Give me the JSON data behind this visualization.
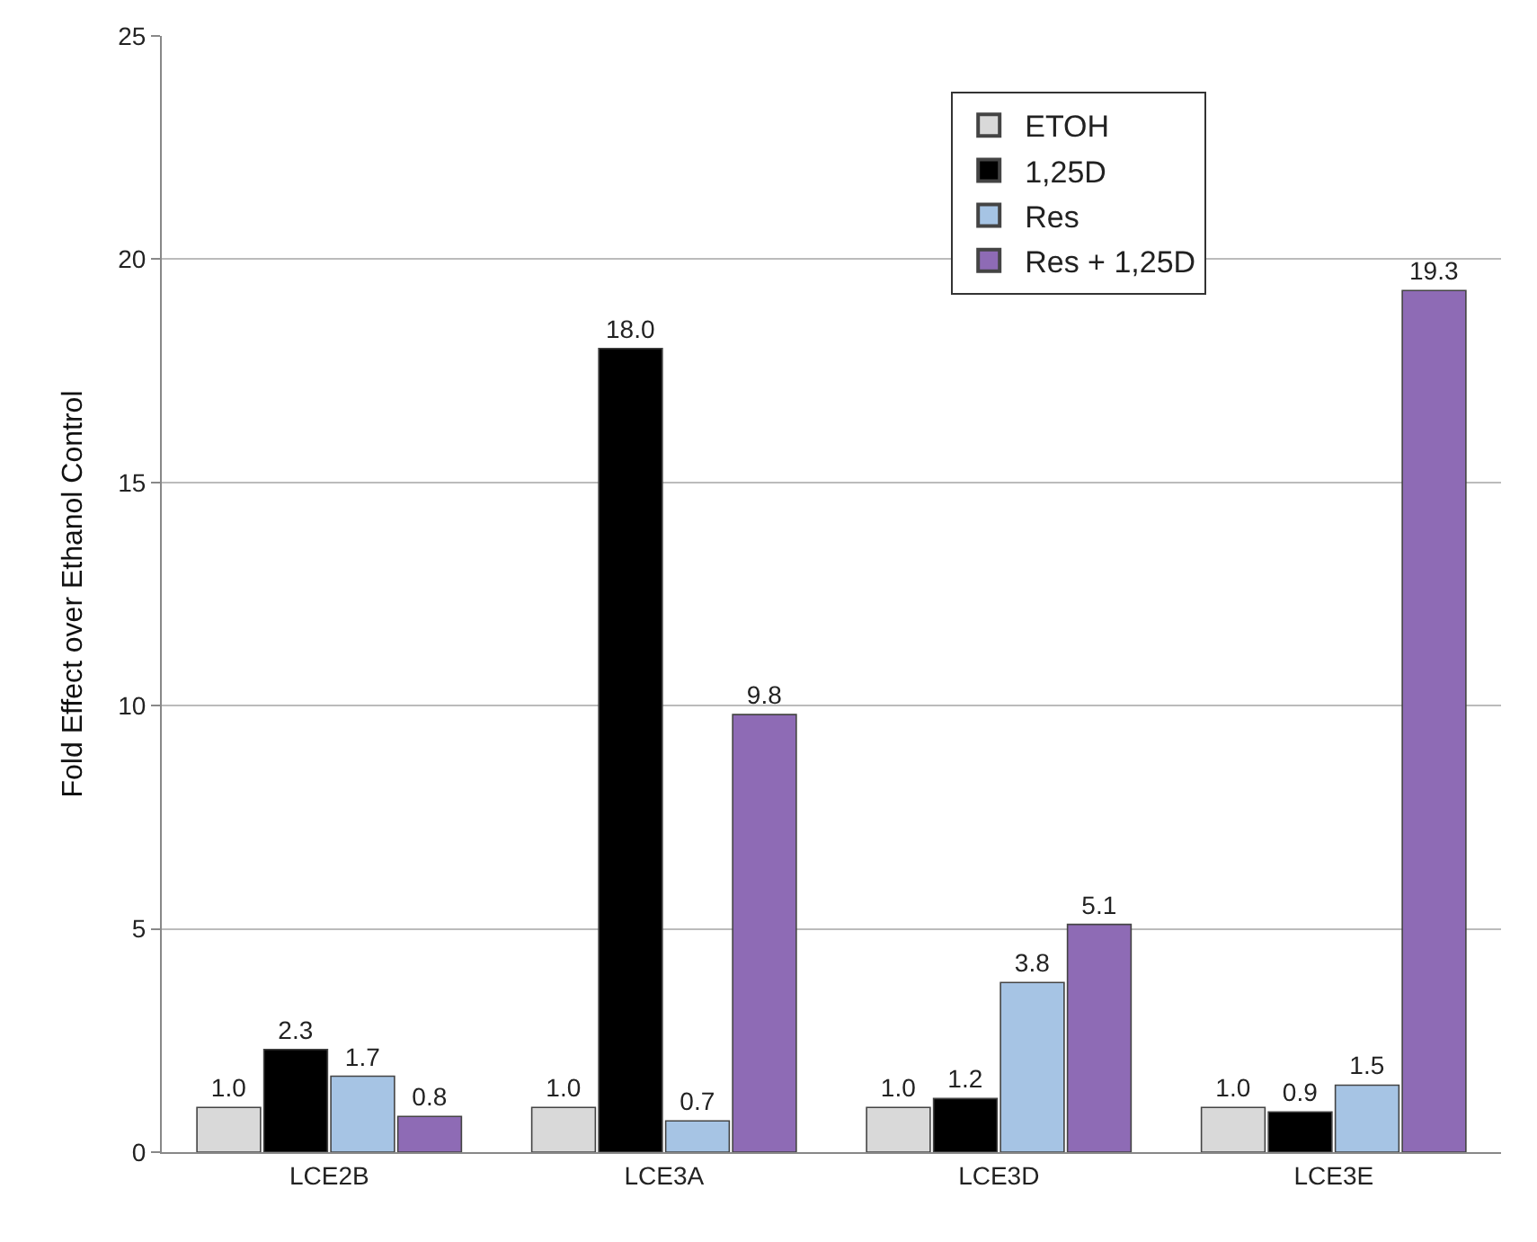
{
  "chart_data": {
    "type": "bar",
    "ylabel": "Fold Effect over Ethanol Control",
    "categories": [
      "LCE2B",
      "LCE3A",
      "LCE3D",
      "LCE3E"
    ],
    "series": [
      {
        "name": "ETOH",
        "color": "#d9d9d9",
        "values": [
          1.0,
          1.0,
          1.0,
          1.0
        ],
        "value_labels": [
          "1.0",
          "1.0",
          "1.0",
          "1.0"
        ]
      },
      {
        "name": "1,25D",
        "color": "#000000",
        "values": [
          2.3,
          18.0,
          1.2,
          0.9
        ],
        "value_labels": [
          "2.3",
          "18.0",
          "1.2",
          "0.9"
        ]
      },
      {
        "name": "Res",
        "color": "#a6c4e4",
        "values": [
          1.7,
          0.7,
          3.8,
          1.5
        ],
        "value_labels": [
          "1.7",
          "0.7",
          "3.8",
          "1.5"
        ]
      },
      {
        "name": "Res + 1,25D",
        "color": "#8e6bb5",
        "values": [
          0.8,
          9.8,
          5.1,
          19.3
        ],
        "value_labels": [
          "0.8",
          "9.8",
          "5.1",
          "19.3"
        ]
      }
    ],
    "ylim": [
      0,
      25
    ],
    "yticks": [
      0,
      5,
      10,
      15,
      20,
      25
    ],
    "grid": "y",
    "legend": "top right"
  }
}
